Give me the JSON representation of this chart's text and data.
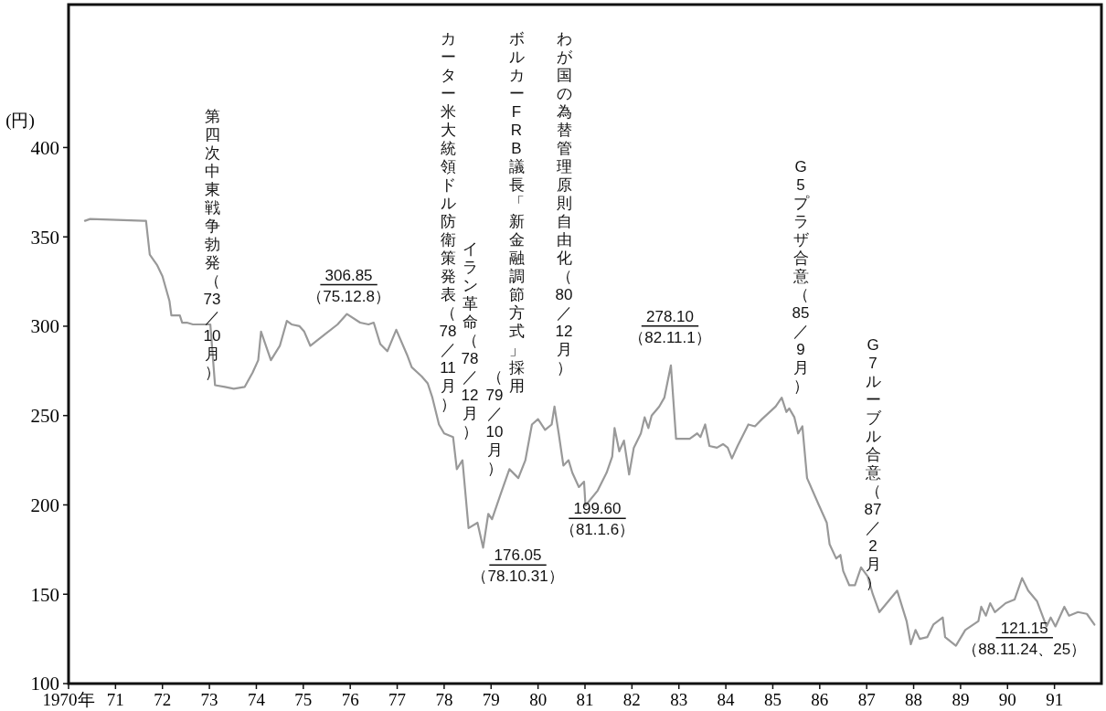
{
  "chart_data": {
    "type": "line",
    "ylabel": "(円)",
    "xlim": [
      1970,
      1992
    ],
    "ylim": [
      100,
      480
    ],
    "yticks": [
      100,
      150,
      200,
      250,
      300,
      350,
      400
    ],
    "xticks": [
      {
        "value": 1970,
        "label": "1970年"
      },
      {
        "value": 1971,
        "label": "71"
      },
      {
        "value": 1972,
        "label": "72"
      },
      {
        "value": 1973,
        "label": "73"
      },
      {
        "value": 1974,
        "label": "74"
      },
      {
        "value": 1975,
        "label": "75"
      },
      {
        "value": 1976,
        "label": "76"
      },
      {
        "value": 1977,
        "label": "77"
      },
      {
        "value": 1978,
        "label": "78"
      },
      {
        "value": 1979,
        "label": "79"
      },
      {
        "value": 1980,
        "label": "80"
      },
      {
        "value": 1981,
        "label": "81"
      },
      {
        "value": 1982,
        "label": "82"
      },
      {
        "value": 1983,
        "label": "83"
      },
      {
        "value": 1984,
        "label": "84"
      },
      {
        "value": 1985,
        "label": "85"
      },
      {
        "value": 1986,
        "label": "86"
      },
      {
        "value": 1987,
        "label": "87"
      },
      {
        "value": 1988,
        "label": "88"
      },
      {
        "value": 1989,
        "label": "89"
      },
      {
        "value": 1990,
        "label": "90"
      },
      {
        "value": 1991,
        "label": "91"
      }
    ],
    "grid": false,
    "marker": "none",
    "line_style": "solid",
    "series": [
      {
        "color": "#999999",
        "x": [
          1970.35,
          1970.46,
          1971.6,
          1971.65,
          1971.73,
          1971.89,
          1972.0,
          1972.15,
          1972.19,
          1972.37,
          1972.42,
          1972.52,
          1972.65,
          1973.02,
          1973.12,
          1973.33,
          1973.52,
          1973.75,
          1973.92,
          1974.04,
          1974.1,
          1974.31,
          1974.5,
          1974.65,
          1974.75,
          1974.92,
          1975.02,
          1975.15,
          1975.44,
          1975.73,
          1975.93,
          1976.21,
          1976.39,
          1976.5,
          1976.64,
          1976.79,
          1976.98,
          1977.21,
          1977.31,
          1977.52,
          1977.65,
          1977.75,
          1977.89,
          1978.0,
          1978.19,
          1978.27,
          1978.39,
          1978.52,
          1978.71,
          1978.83,
          1978.94,
          1979.02,
          1979.19,
          1979.39,
          1979.58,
          1979.73,
          1979.87,
          1980.0,
          1980.15,
          1980.29,
          1980.35,
          1980.44,
          1980.54,
          1980.65,
          1980.73,
          1980.87,
          1980.98,
          1981.01,
          1981.27,
          1981.46,
          1981.58,
          1981.63,
          1981.73,
          1981.83,
          1981.94,
          1982.04,
          1982.19,
          1982.27,
          1982.35,
          1982.42,
          1982.58,
          1982.69,
          1982.83,
          1982.94,
          1983.23,
          1983.39,
          1983.46,
          1983.56,
          1983.65,
          1983.81,
          1983.94,
          1984.04,
          1984.13,
          1984.25,
          1984.48,
          1984.62,
          1984.77,
          1985.06,
          1985.19,
          1985.29,
          1985.35,
          1985.46,
          1985.54,
          1985.63,
          1985.73,
          1985.98,
          1986.15,
          1986.21,
          1986.35,
          1986.44,
          1986.5,
          1986.63,
          1986.75,
          1986.88,
          1987.02,
          1987.13,
          1987.27,
          1987.65,
          1987.85,
          1987.94,
          1988.04,
          1988.13,
          1988.29,
          1988.42,
          1988.62,
          1988.67,
          1988.9,
          1989.1,
          1989.38,
          1989.44,
          1989.54,
          1989.63,
          1989.73,
          1989.96,
          1990.15,
          1990.31,
          1990.44,
          1990.63,
          1990.83,
          1990.92,
          1991.02,
          1991.21,
          1991.31,
          1991.5,
          1991.69,
          1991.85
        ],
        "values": [
          359,
          360,
          359,
          359,
          340,
          334,
          328,
          314,
          306,
          306,
          302,
          302,
          301,
          301,
          267,
          266,
          265,
          266,
          274,
          281,
          297,
          281,
          289,
          303,
          301,
          300,
          297,
          289,
          295,
          301,
          306.85,
          302,
          301,
          302,
          290,
          286,
          298,
          284,
          277,
          272,
          268,
          260,
          245,
          240,
          238,
          220,
          225,
          187,
          190,
          176.05,
          195,
          192,
          205,
          220,
          215,
          225,
          245,
          248,
          242,
          245,
          255,
          240,
          222,
          225,
          218,
          210,
          213,
          199.6,
          208,
          218,
          227,
          243,
          230,
          236,
          217,
          232,
          240,
          249,
          243,
          250,
          255,
          260,
          278.1,
          237,
          237,
          240,
          238,
          245,
          233,
          232,
          234,
          232,
          226,
          233,
          245,
          244,
          248,
          255,
          260,
          252,
          254,
          249,
          240,
          244,
          215,
          200,
          190,
          178,
          170,
          172,
          163,
          155,
          155,
          165,
          160,
          150,
          140,
          152,
          135,
          122,
          130,
          125,
          126,
          133,
          137,
          126,
          121.15,
          130,
          135,
          143,
          138,
          145,
          140,
          145,
          147,
          159,
          152,
          146,
          132,
          137,
          132,
          143,
          138,
          140,
          139,
          133
        ]
      }
    ],
    "annotations": [
      "第四次中東戦争勃発（73／10月）",
      "カーター米大統領ドル防衛策発表（78／11月）",
      "イラン革命（78／12月）",
      "ボルカーFRB議長「新金融調節方式」採用",
      "（79／10月）",
      "わが国の為替管理原則自由化（80／12月）",
      "G5プラザ合意（85／9月）",
      "G7ルーブル合意（87／2月）",
      {
        "text": "306.85",
        "x": 1975.93,
        "y": 306.85
      },
      "（75.12.8）",
      {
        "text": "176.05",
        "x": 1978.83,
        "y": 176.05
      },
      "（78.10.31）",
      {
        "text": "199.60",
        "x": 1981.01,
        "y": 199.6
      },
      "（81.1.6）",
      {
        "text": "278.10",
        "x": 1982.83,
        "y": 278.1
      },
      "（82.11.1）",
      {
        "text": "121.15",
        "x": 1988.9,
        "y": 121.15
      },
      "（88.11.24、25）"
    ]
  }
}
